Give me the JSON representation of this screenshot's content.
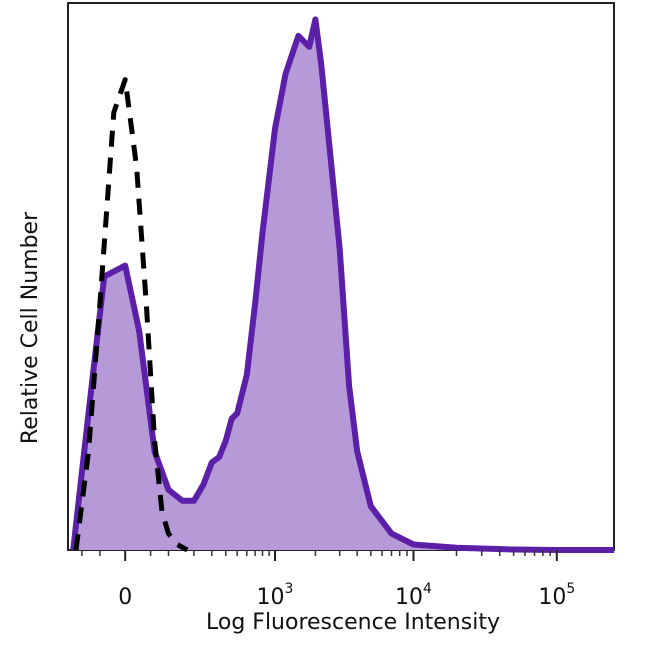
{
  "chart_data": {
    "type": "area",
    "xlabel": "Log Fluorescence Intensity",
    "ylabel": "Relative Cell Number",
    "x_scale": "biexponential",
    "xlim": [
      -150,
      250000
    ],
    "ylim": [
      0,
      100
    ],
    "x_ticks": [
      {
        "base": "0",
        "exp": "",
        "value": 0
      },
      {
        "base": "10",
        "exp": "3",
        "value": 1000
      },
      {
        "base": "10",
        "exp": "4",
        "value": 10000
      },
      {
        "base": "10",
        "exp": "5",
        "value": 100000
      }
    ],
    "grid": false,
    "legend": "none",
    "series": [
      {
        "style": "dashed-line",
        "color": "#000000",
        "x": [
          -120,
          -80,
          -50,
          -20,
          0,
          20,
          40,
          60,
          80,
          100,
          130,
          170
        ],
        "y": [
          0,
          18,
          45,
          80,
          86,
          70,
          45,
          20,
          7,
          3,
          1,
          0
        ]
      },
      {
        "style": "filled-area",
        "color": "#5b1fa8",
        "fill": "#b69ad8",
        "x": [
          -130,
          -80,
          -40,
          0,
          25,
          60,
          100,
          150,
          200,
          250,
          300,
          350,
          400,
          450,
          500,
          600,
          700,
          800,
          1000,
          1200,
          1500,
          1800,
          2000,
          2200,
          2500,
          3000,
          3500,
          4000,
          5000,
          7000,
          10000,
          20000,
          50000,
          100000,
          250000
        ],
        "y": [
          0,
          25,
          50,
          52,
          40,
          18,
          11,
          9,
          9,
          12,
          16,
          17,
          20,
          24,
          25,
          32,
          45,
          58,
          77,
          87,
          94,
          92,
          97,
          89,
          75,
          55,
          30,
          18,
          8,
          3,
          1,
          0.4,
          0.1,
          0,
          0
        ]
      }
    ]
  }
}
